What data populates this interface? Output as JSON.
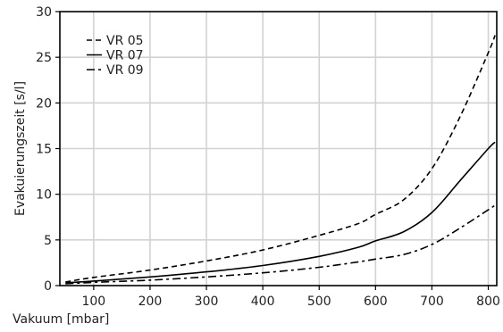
{
  "chart_data": {
    "type": "line",
    "xlabel": "Vakuum [mbar]",
    "ylabel": "Evakuierungszeit [s/l]",
    "xlim": [
      40,
      815
    ],
    "ylim": [
      0,
      30
    ],
    "xticks": [
      100,
      200,
      300,
      400,
      500,
      600,
      700,
      800
    ],
    "yticks": [
      0,
      5,
      10,
      15,
      20,
      25,
      30
    ],
    "grid": true,
    "legend_position": "top-left",
    "series": [
      {
        "name": "VR 05",
        "dash": "6,4",
        "x": [
          50,
          100,
          200,
          300,
          400,
          500,
          570,
          600,
          650,
          700,
          750,
          800,
          812
        ],
        "y": [
          0.4,
          0.9,
          1.7,
          2.7,
          3.9,
          5.5,
          6.8,
          7.8,
          9.4,
          12.8,
          18.5,
          25.5,
          27.4
        ]
      },
      {
        "name": "VR 07",
        "dash": "",
        "x": [
          50,
          100,
          200,
          300,
          400,
          500,
          570,
          600,
          650,
          700,
          750,
          800,
          812
        ],
        "y": [
          0.3,
          0.5,
          0.95,
          1.5,
          2.2,
          3.2,
          4.2,
          4.9,
          5.9,
          8.0,
          11.5,
          15.0,
          15.7
        ]
      },
      {
        "name": "VR 09",
        "dash": "9,4,3,4",
        "x": [
          50,
          100,
          200,
          300,
          400,
          500,
          570,
          600,
          650,
          700,
          750,
          800,
          812
        ],
        "y": [
          0.2,
          0.35,
          0.6,
          0.95,
          1.4,
          2.0,
          2.6,
          2.9,
          3.4,
          4.5,
          6.3,
          8.3,
          8.8
        ]
      }
    ]
  }
}
